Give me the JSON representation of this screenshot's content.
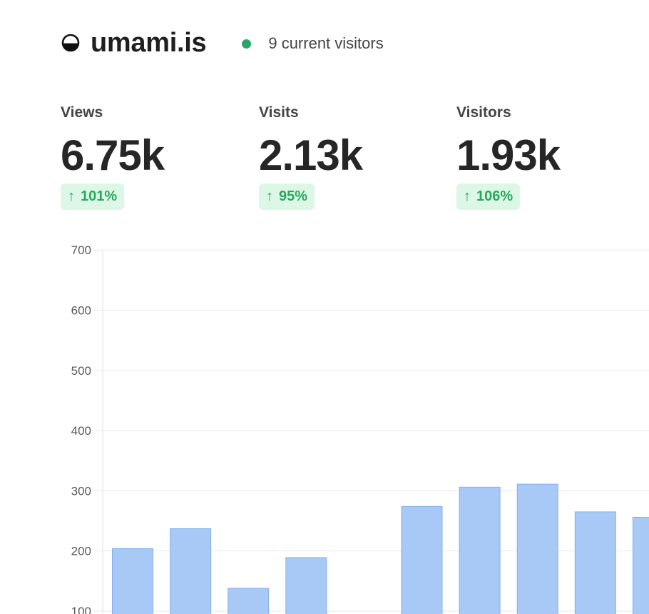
{
  "header": {
    "site_name": "umami.is",
    "live_visitors_text": "9 current visitors",
    "logo_icon": "half-circle-logo-icon",
    "live_dot_color": "#2ca36b"
  },
  "metrics": [
    {
      "label": "Views",
      "value": "6.75k",
      "change": "101%",
      "trend_icon": "arrow-up-icon"
    },
    {
      "label": "Visits",
      "value": "2.13k",
      "change": "95%",
      "trend_icon": "arrow-up-icon"
    },
    {
      "label": "Visitors",
      "value": "1.93k",
      "change": "106%",
      "trend_icon": "arrow-up-icon"
    }
  ],
  "colors": {
    "positive_text": "#2aa861",
    "positive_bg": "#dcf7e6",
    "bar_fill": "#a8c9f5",
    "bar_stroke": "#84b0ec"
  },
  "chart_data": {
    "type": "bar",
    "title": "",
    "xlabel": "",
    "ylabel": "",
    "ylim": [
      100,
      700
    ],
    "yticks": [
      100,
      200,
      300,
      400,
      500,
      600,
      700
    ],
    "grid": true,
    "values": [
      204,
      237,
      138,
      189,
      null,
      274,
      306,
      311,
      265,
      256
    ]
  }
}
